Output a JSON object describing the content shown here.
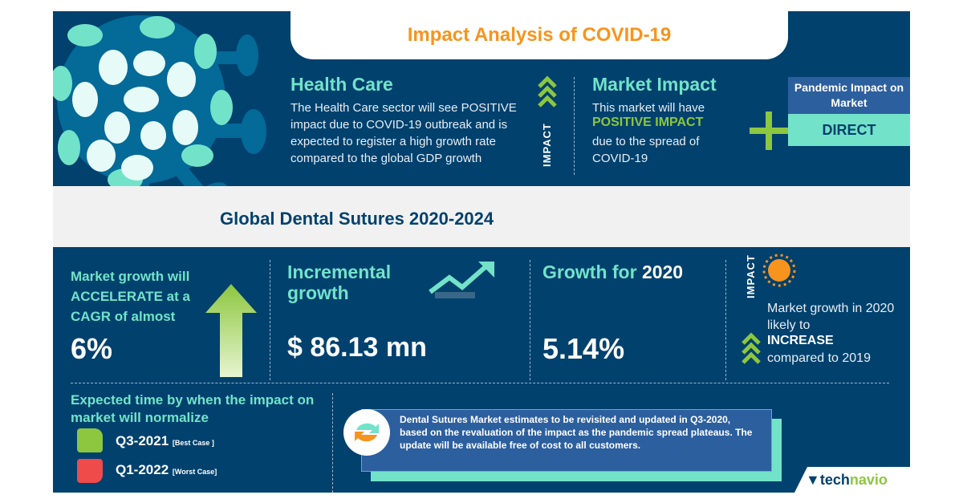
{
  "header": {
    "title": "Impact Analysis of COVID-19"
  },
  "health_care": {
    "title": "Health Care",
    "text": "The Health Care sector will see POSITIVE impact due to COVID-19 outbreak and is expected to register a high growth rate compared to the global GDP growth"
  },
  "impact_label": "IMPACT",
  "market_impact": {
    "title": "Market Impact",
    "line1": "This market will have",
    "highlight": "POSITIVE IMPACT",
    "line2": "due to the spread of COVID-19"
  },
  "pandemic": {
    "label": "Pandemic Impact on Market",
    "value": "DIRECT"
  },
  "report_title": "Global Dental Sutures 2020-2024",
  "growth": {
    "text": "Market growth will ACCELERATE at a CAGR of almost",
    "value": "6%"
  },
  "incremental": {
    "title": "Incremental growth",
    "value": "$ 86.13 mn"
  },
  "growth2020": {
    "title_prefix": "Growth for ",
    "title_year": "2020",
    "value": "5.14%"
  },
  "impact2020": {
    "label": "IMPACT",
    "line1": "Market growth in 2020 likely to",
    "highlight": "INCREASE",
    "line2": "compared to 2019"
  },
  "normalize": {
    "title": "Expected time by when the impact on market will normalize",
    "best": "Q3-2021",
    "best_note": "[Best Case ]",
    "worst": "Q1-2022",
    "worst_note": "[Worst Case]"
  },
  "note": "Dental Sutures Market estimates to be revisited and updated in Q3-2020, based on the revaluation of the impact as the pandemic spread plateaus. The update will be available free of cost to all customers.",
  "brand": {
    "tech": "tech",
    "navio": "navio"
  },
  "colors": {
    "navy": "#00416e",
    "teal": "#72e3c9",
    "orange": "#f7941d",
    "green": "#8dc63f",
    "red": "#ef4b4b"
  }
}
